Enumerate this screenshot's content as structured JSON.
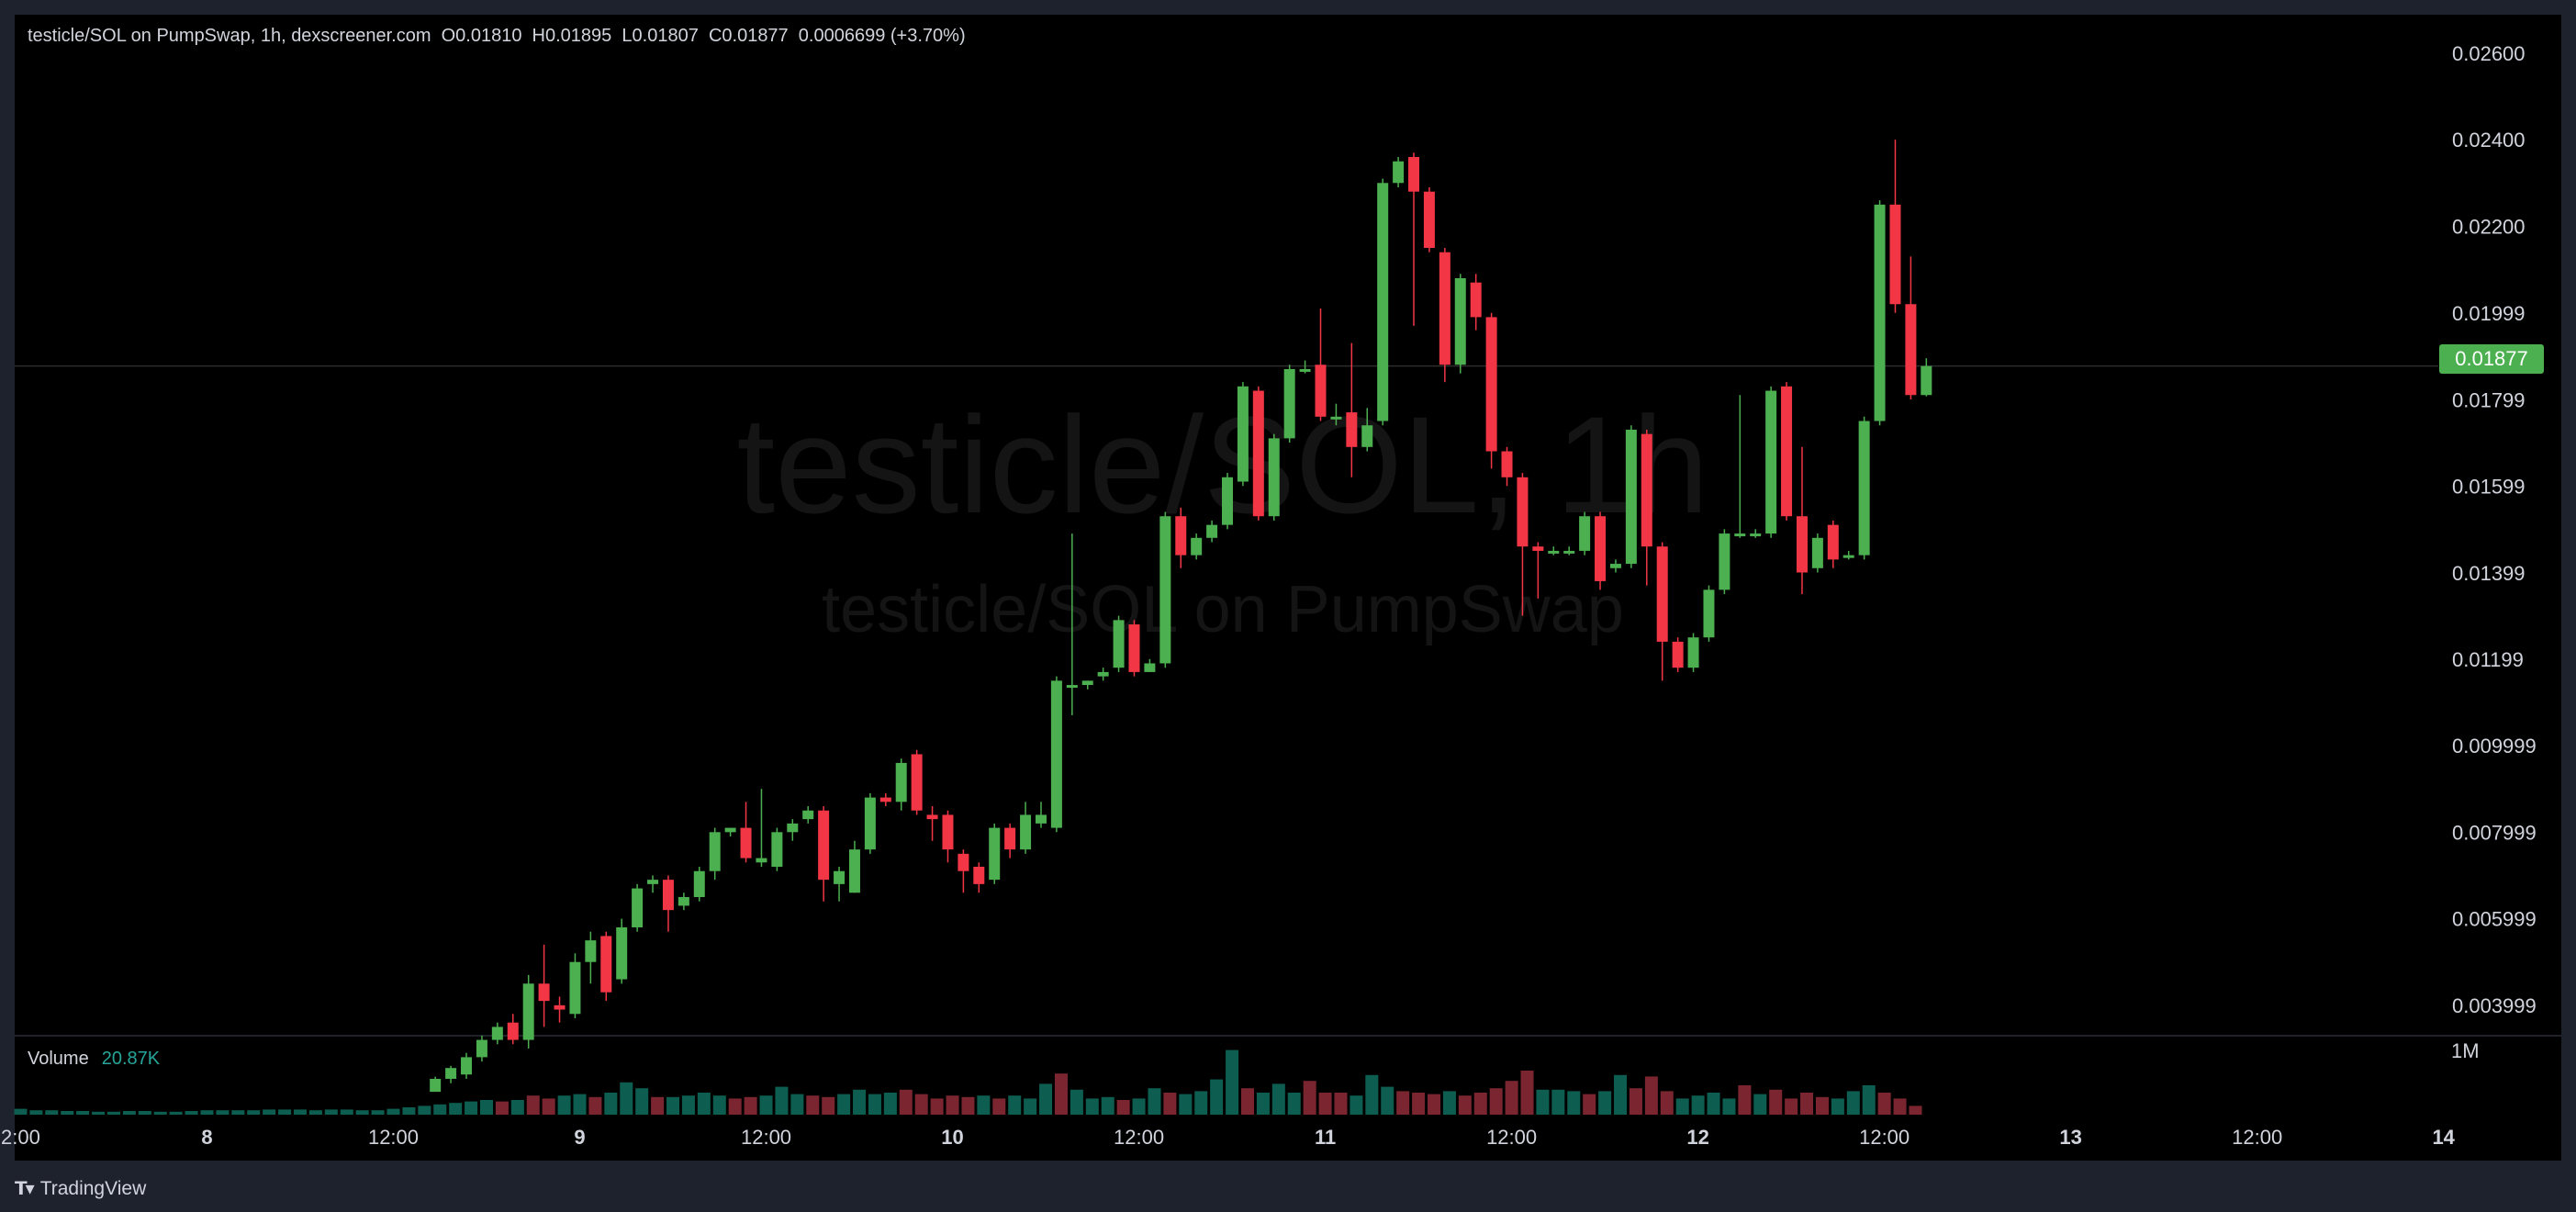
{
  "legend_text": "testicle/SOL on PumpSwap, 1h, dexscreener.com  O0.01810  H0.01895  L0.01807  C0.01877  0.0006699 (+3.70%)",
  "watermark": {
    "main": "testicle/SOL, 1h",
    "sub": "testicle/SOL on PumpSwap"
  },
  "volume": {
    "label": "Volume",
    "value": "20.87K",
    "axis_label": "1M"
  },
  "last_price": "0.01877",
  "footer": {
    "brand": "TradingView"
  },
  "colors": {
    "up": "#4caf50",
    "down": "#f23645",
    "vol_up": "#0d5e51",
    "vol_down": "#7a2530",
    "background": "#000000",
    "frame": "#1e222d"
  },
  "chart_data": {
    "type": "candlestick",
    "interval": "1h",
    "y_ticks": [
      {
        "label": "0.02600",
        "value": 0.026
      },
      {
        "label": "0.02400",
        "value": 0.024
      },
      {
        "label": "0.02200",
        "value": 0.022
      },
      {
        "label": "0.01999",
        "value": 0.01999
      },
      {
        "label": "0.01799",
        "value": 0.01799
      },
      {
        "label": "0.01599",
        "value": 0.01599
      },
      {
        "label": "0.01399",
        "value": 0.01399
      },
      {
        "label": "0.01199",
        "value": 0.01199
      },
      {
        "label": "0.009999",
        "value": 0.009999
      },
      {
        "label": "0.007999",
        "value": 0.007999
      },
      {
        "label": "0.005999",
        "value": 0.005999
      },
      {
        "label": "0.003999",
        "value": 0.003999
      }
    ],
    "x_ticks": [
      {
        "label": "2:00",
        "hour": -14
      },
      {
        "label": "8",
        "hour": -2
      },
      {
        "label": "12:00",
        "hour": 10
      },
      {
        "label": "9",
        "hour": 22
      },
      {
        "label": "12:00",
        "hour": 34
      },
      {
        "label": "10",
        "hour": 46
      },
      {
        "label": "12:00",
        "hour": 58
      },
      {
        "label": "11",
        "hour": 70
      },
      {
        "label": "12:00",
        "hour": 82
      },
      {
        "label": "12",
        "hour": 94
      },
      {
        "label": "12:00",
        "hour": 106
      },
      {
        "label": "13",
        "hour": 118
      },
      {
        "label": "12:00",
        "hour": 130
      },
      {
        "label": "14",
        "hour": 142
      }
    ],
    "hour_range": [
      -14.5,
      141.9
    ],
    "ylim": [
      0.001769,
      0.027228
    ],
    "last_price": 0.01877,
    "candles": [
      [
        12.7,
        0.002,
        0.0023,
        0.0021,
        0.00235
      ],
      [
        13.7,
        0.0023,
        0.00255,
        0.0022,
        0.0026
      ],
      [
        14.7,
        0.0024,
        0.0028,
        0.0023,
        0.0029
      ],
      [
        15.7,
        0.0028,
        0.0032,
        0.0027,
        0.0033
      ],
      [
        16.7,
        0.0032,
        0.0035,
        0.0031,
        0.0036
      ],
      [
        17.7,
        0.0036,
        0.0032,
        0.0031,
        0.0038
      ],
      [
        18.7,
        0.0032,
        0.0045,
        0.003,
        0.0047
      ],
      [
        19.7,
        0.0045,
        0.0041,
        0.0035,
        0.0054
      ],
      [
        20.7,
        0.004,
        0.0039,
        0.0036,
        0.0042
      ],
      [
        21.7,
        0.0038,
        0.005,
        0.0037,
        0.0052
      ],
      [
        22.7,
        0.005,
        0.0055,
        0.0045,
        0.0057
      ],
      [
        23.7,
        0.0056,
        0.0043,
        0.0041,
        0.0057
      ],
      [
        24.7,
        0.0046,
        0.0058,
        0.0045,
        0.006
      ],
      [
        25.7,
        0.0058,
        0.0067,
        0.0057,
        0.0068
      ],
      [
        26.7,
        0.0068,
        0.0069,
        0.0066,
        0.007
      ],
      [
        27.7,
        0.0069,
        0.0062,
        0.0057,
        0.007
      ],
      [
        28.7,
        0.0063,
        0.0065,
        0.0062,
        0.0066
      ],
      [
        29.7,
        0.0065,
        0.0071,
        0.0064,
        0.0072
      ],
      [
        30.7,
        0.0071,
        0.008,
        0.0069,
        0.0081
      ],
      [
        31.7,
        0.008,
        0.0081,
        0.0079,
        0.0081
      ],
      [
        32.7,
        0.0081,
        0.0074,
        0.0073,
        0.0087
      ],
      [
        33.7,
        0.0073,
        0.0074,
        0.0072,
        0.009
      ],
      [
        34.7,
        0.0072,
        0.008,
        0.0071,
        0.0081
      ],
      [
        35.7,
        0.008,
        0.0082,
        0.0078,
        0.0083
      ],
      [
        36.7,
        0.0083,
        0.0085,
        0.0082,
        0.0086
      ],
      [
        37.7,
        0.0085,
        0.0069,
        0.0064,
        0.0086
      ],
      [
        38.7,
        0.0068,
        0.0071,
        0.0064,
        0.0072
      ],
      [
        39.7,
        0.0066,
        0.0076,
        0.0066,
        0.0078
      ],
      [
        40.7,
        0.0076,
        0.0088,
        0.0075,
        0.0089
      ],
      [
        41.7,
        0.0088,
        0.0087,
        0.0086,
        0.0089
      ],
      [
        42.7,
        0.0087,
        0.0096,
        0.0085,
        0.0097
      ],
      [
        43.7,
        0.0098,
        0.0085,
        0.0084,
        0.0099
      ],
      [
        44.7,
        0.0084,
        0.0083,
        0.0078,
        0.0086
      ],
      [
        45.7,
        0.0084,
        0.0076,
        0.0073,
        0.0085
      ],
      [
        46.7,
        0.0075,
        0.0071,
        0.0066,
        0.0076
      ],
      [
        47.7,
        0.0072,
        0.0068,
        0.0066,
        0.0073
      ],
      [
        48.7,
        0.0069,
        0.0081,
        0.0068,
        0.0082
      ],
      [
        49.7,
        0.0081,
        0.0076,
        0.0074,
        0.0082
      ],
      [
        50.7,
        0.0076,
        0.0084,
        0.0075,
        0.0087
      ],
      [
        51.7,
        0.0082,
        0.0084,
        0.0081,
        0.0087
      ],
      [
        52.7,
        0.0081,
        0.0115,
        0.008,
        0.0116
      ],
      [
        53.7,
        0.0114,
        0.0114,
        0.0107,
        0.0149
      ],
      [
        54.7,
        0.0114,
        0.0115,
        0.0113,
        0.0115
      ],
      [
        55.7,
        0.0116,
        0.0117,
        0.0115,
        0.0118
      ],
      [
        56.7,
        0.0118,
        0.0129,
        0.0117,
        0.013
      ],
      [
        57.7,
        0.0128,
        0.0117,
        0.0116,
        0.0129
      ],
      [
        58.7,
        0.0117,
        0.0119,
        0.0117,
        0.012
      ],
      [
        59.7,
        0.0119,
        0.0153,
        0.0118,
        0.0154
      ],
      [
        60.7,
        0.0153,
        0.0144,
        0.0141,
        0.0155
      ],
      [
        61.7,
        0.0144,
        0.0148,
        0.0143,
        0.0149
      ],
      [
        62.7,
        0.0148,
        0.0151,
        0.0147,
        0.0152
      ],
      [
        63.7,
        0.0151,
        0.0162,
        0.015,
        0.0163
      ],
      [
        64.7,
        0.0161,
        0.0183,
        0.016,
        0.0184
      ],
      [
        65.7,
        0.0182,
        0.0153,
        0.0152,
        0.0183
      ],
      [
        66.7,
        0.0153,
        0.0171,
        0.0152,
        0.0172
      ],
      [
        67.7,
        0.0171,
        0.0187,
        0.017,
        0.0188
      ],
      [
        68.7,
        0.0187,
        0.0187,
        0.0186,
        0.0189
      ],
      [
        69.7,
        0.0188,
        0.0176,
        0.0175,
        0.0201
      ],
      [
        70.7,
        0.0176,
        0.0176,
        0.0174,
        0.0179
      ],
      [
        71.7,
        0.0177,
        0.0169,
        0.0162,
        0.0193
      ],
      [
        72.7,
        0.0169,
        0.0174,
        0.0168,
        0.0178
      ],
      [
        73.7,
        0.0175,
        0.023,
        0.0174,
        0.0231
      ],
      [
        74.7,
        0.023,
        0.0235,
        0.0229,
        0.0236
      ],
      [
        75.7,
        0.0236,
        0.0228,
        0.0197,
        0.0237
      ],
      [
        76.7,
        0.0228,
        0.0215,
        0.0214,
        0.0229
      ],
      [
        77.7,
        0.0214,
        0.0188,
        0.0184,
        0.0215
      ],
      [
        78.7,
        0.0188,
        0.0208,
        0.0186,
        0.0209
      ],
      [
        79.7,
        0.0207,
        0.0199,
        0.0196,
        0.0209
      ],
      [
        80.7,
        0.0199,
        0.0168,
        0.0164,
        0.02
      ],
      [
        81.7,
        0.0168,
        0.0162,
        0.016,
        0.0169
      ],
      [
        82.7,
        0.0162,
        0.0146,
        0.013,
        0.0163
      ],
      [
        83.7,
        0.0146,
        0.0145,
        0.0134,
        0.0147
      ],
      [
        84.7,
        0.0145,
        0.0145,
        0.0144,
        0.0146
      ],
      [
        85.7,
        0.0145,
        0.0145,
        0.0144,
        0.0146
      ],
      [
        86.7,
        0.0145,
        0.0153,
        0.0144,
        0.0154
      ],
      [
        87.7,
        0.0153,
        0.0138,
        0.0136,
        0.0154
      ],
      [
        88.7,
        0.0141,
        0.0142,
        0.014,
        0.0143
      ],
      [
        89.7,
        0.0142,
        0.0173,
        0.0141,
        0.0174
      ],
      [
        90.7,
        0.0172,
        0.0146,
        0.0137,
        0.0173
      ],
      [
        91.7,
        0.0146,
        0.0124,
        0.0115,
        0.0147
      ],
      [
        92.7,
        0.0124,
        0.0118,
        0.0117,
        0.0125
      ],
      [
        93.7,
        0.0118,
        0.0125,
        0.0117,
        0.0126
      ],
      [
        94.7,
        0.0125,
        0.0136,
        0.0124,
        0.0137
      ],
      [
        95.7,
        0.0136,
        0.0149,
        0.0135,
        0.015
      ],
      [
        96.7,
        0.0149,
        0.0149,
        0.0148,
        0.0181
      ],
      [
        97.7,
        0.0149,
        0.0149,
        0.0148,
        0.015
      ],
      [
        98.7,
        0.0149,
        0.0182,
        0.0148,
        0.0183
      ],
      [
        99.7,
        0.0183,
        0.0153,
        0.0152,
        0.0184
      ],
      [
        100.7,
        0.0153,
        0.014,
        0.0135,
        0.0169
      ],
      [
        101.7,
        0.0141,
        0.0148,
        0.014,
        0.0149
      ],
      [
        102.7,
        0.0151,
        0.0143,
        0.0141,
        0.0152
      ],
      [
        103.7,
        0.0144,
        0.0144,
        0.0143,
        0.0145
      ],
      [
        104.7,
        0.0144,
        0.0175,
        0.0143,
        0.0176
      ],
      [
        105.7,
        0.0175,
        0.0225,
        0.0174,
        0.0226
      ],
      [
        106.7,
        0.0225,
        0.0202,
        0.02,
        0.024
      ],
      [
        107.7,
        0.0202,
        0.0181,
        0.018,
        0.0213
      ],
      [
        108.7,
        0.0181,
        0.01877,
        0.01807,
        0.01895
      ]
    ],
    "volume": [
      [
        -14,
        0.08,
        1
      ],
      [
        -13,
        0.06,
        1
      ],
      [
        -12,
        0.06,
        1
      ],
      [
        -11,
        0.05,
        1
      ],
      [
        -10,
        0.05,
        1
      ],
      [
        -9,
        0.04,
        1
      ],
      [
        -8,
        0.04,
        1
      ],
      [
        -7,
        0.05,
        1
      ],
      [
        -6,
        0.05,
        1
      ],
      [
        -5,
        0.04,
        1
      ],
      [
        -4,
        0.04,
        1
      ],
      [
        -3,
        0.05,
        1
      ],
      [
        -2,
        0.06,
        1
      ],
      [
        -1,
        0.06,
        1
      ],
      [
        0,
        0.06,
        1
      ],
      [
        1,
        0.06,
        1
      ],
      [
        2,
        0.07,
        1
      ],
      [
        3,
        0.07,
        1
      ],
      [
        4,
        0.07,
        1
      ],
      [
        5,
        0.06,
        1
      ],
      [
        6,
        0.07,
        1
      ],
      [
        7,
        0.07,
        1
      ],
      [
        8,
        0.06,
        1
      ],
      [
        9,
        0.06,
        1
      ],
      [
        10,
        0.08,
        1
      ],
      [
        11,
        0.1,
        1
      ],
      [
        12,
        0.12,
        1
      ],
      [
        13,
        0.14,
        1
      ],
      [
        14,
        0.16,
        1
      ],
      [
        15,
        0.18,
        1
      ],
      [
        16,
        0.2,
        1
      ],
      [
        17,
        0.18,
        0
      ],
      [
        18,
        0.2,
        1
      ],
      [
        19,
        0.26,
        0
      ],
      [
        20,
        0.22,
        0
      ],
      [
        21,
        0.26,
        1
      ],
      [
        22,
        0.28,
        1
      ],
      [
        23,
        0.24,
        0
      ],
      [
        24,
        0.3,
        1
      ],
      [
        25,
        0.44,
        1
      ],
      [
        26,
        0.36,
        1
      ],
      [
        27,
        0.24,
        0
      ],
      [
        28,
        0.24,
        1
      ],
      [
        29,
        0.26,
        1
      ],
      [
        30,
        0.3,
        1
      ],
      [
        31,
        0.26,
        1
      ],
      [
        32,
        0.22,
        0
      ],
      [
        33,
        0.24,
        0
      ],
      [
        34,
        0.26,
        1
      ],
      [
        35,
        0.38,
        1
      ],
      [
        36,
        0.28,
        1
      ],
      [
        37,
        0.26,
        0
      ],
      [
        38,
        0.24,
        0
      ],
      [
        39,
        0.28,
        1
      ],
      [
        40,
        0.34,
        1
      ],
      [
        41,
        0.28,
        1
      ],
      [
        42,
        0.3,
        1
      ],
      [
        43,
        0.34,
        0
      ],
      [
        44,
        0.28,
        0
      ],
      [
        45,
        0.22,
        0
      ],
      [
        46,
        0.26,
        0
      ],
      [
        47,
        0.24,
        0
      ],
      [
        48,
        0.26,
        1
      ],
      [
        49,
        0.22,
        0
      ],
      [
        50,
        0.26,
        1
      ],
      [
        51,
        0.22,
        1
      ],
      [
        52,
        0.42,
        1
      ],
      [
        53,
        0.56,
        0
      ],
      [
        54,
        0.34,
        1
      ],
      [
        55,
        0.22,
        1
      ],
      [
        56,
        0.24,
        1
      ],
      [
        57,
        0.2,
        0
      ],
      [
        58,
        0.22,
        1
      ],
      [
        59,
        0.36,
        1
      ],
      [
        60,
        0.3,
        0
      ],
      [
        61,
        0.28,
        1
      ],
      [
        62,
        0.32,
        1
      ],
      [
        63,
        0.48,
        1
      ],
      [
        64,
        0.88,
        1
      ],
      [
        65,
        0.36,
        0
      ],
      [
        66,
        0.3,
        1
      ],
      [
        67,
        0.42,
        1
      ],
      [
        68,
        0.3,
        1
      ],
      [
        69,
        0.46,
        0
      ],
      [
        70,
        0.3,
        0
      ],
      [
        71,
        0.3,
        0
      ],
      [
        72,
        0.26,
        1
      ],
      [
        73,
        0.54,
        1
      ],
      [
        74,
        0.38,
        1
      ],
      [
        75,
        0.32,
        0
      ],
      [
        76,
        0.3,
        0
      ],
      [
        77,
        0.28,
        0
      ],
      [
        78,
        0.32,
        1
      ],
      [
        79,
        0.26,
        0
      ],
      [
        80,
        0.3,
        0
      ],
      [
        81,
        0.36,
        0
      ],
      [
        82,
        0.46,
        0
      ],
      [
        83,
        0.6,
        0
      ],
      [
        84,
        0.34,
        1
      ],
      [
        85,
        0.34,
        1
      ],
      [
        86,
        0.32,
        1
      ],
      [
        87,
        0.28,
        0
      ],
      [
        88,
        0.32,
        1
      ],
      [
        89,
        0.54,
        1
      ],
      [
        90,
        0.36,
        0
      ],
      [
        91,
        0.52,
        0
      ],
      [
        92,
        0.32,
        0
      ],
      [
        93,
        0.22,
        1
      ],
      [
        94,
        0.26,
        1
      ],
      [
        95,
        0.3,
        1
      ],
      [
        96,
        0.22,
        1
      ],
      [
        97,
        0.4,
        0
      ],
      [
        98,
        0.28,
        1
      ],
      [
        99,
        0.34,
        0
      ],
      [
        100,
        0.22,
        0
      ],
      [
        101,
        0.3,
        0
      ],
      [
        102,
        0.24,
        0
      ],
      [
        103,
        0.22,
        1
      ],
      [
        104,
        0.32,
        1
      ],
      [
        105,
        0.4,
        1
      ],
      [
        106,
        0.3,
        0
      ],
      [
        107,
        0.22,
        0
      ],
      [
        108,
        0.12,
        0
      ]
    ]
  }
}
